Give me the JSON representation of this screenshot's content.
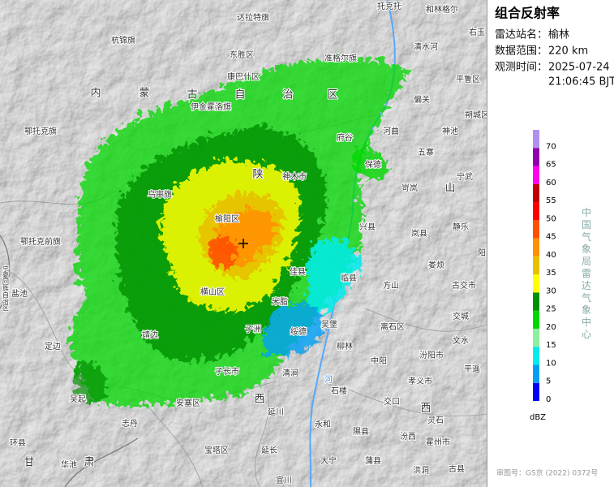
{
  "panel": {
    "title": "组合反射率",
    "station_label": "雷达站名：",
    "station": "榆林",
    "range_label": "数据范围：",
    "range": "220 km",
    "time_label": "观测时间：",
    "date": "2025-07-24",
    "time": "21:06:45 BJT",
    "agency": "中国气象局雷达气象中心",
    "review_number": "审图号：GS京 (2022) 0372号"
  },
  "legend": {
    "unit": "dBZ",
    "ticks": [
      0,
      5,
      10,
      15,
      20,
      25,
      30,
      35,
      40,
      45,
      50,
      55,
      60,
      65,
      70
    ],
    "colors": [
      "#0000f6",
      "#01a0f6",
      "#00ecec",
      "#8cf0a0",
      "#00d800",
      "#009000",
      "#ffff00",
      "#e7c000",
      "#ff9000",
      "#ff5000",
      "#ff0000",
      "#c00000",
      "#ff00f0",
      "#9000b0",
      "#b090f0"
    ]
  },
  "places": [
    "托克托",
    "和林格尔",
    "达拉特旗",
    "杭锦旗",
    "东胜区",
    "准格尔旗",
    "清水河",
    "右玉",
    "康巴什区",
    "平鲁区",
    "内",
    "蒙",
    "古",
    "自",
    "治",
    "区",
    "偏关",
    "伊金霍洛旗",
    "朔城区",
    "鄂托克旗",
    "河曲",
    "神池",
    "府谷",
    "五寨",
    "保德",
    "宁武",
    "陕",
    "神木市",
    "岢岚",
    "山",
    "乌审旗",
    "静乐",
    "鄂托克前旗",
    "榆阳区",
    "兴县",
    "岚县",
    "阳",
    "娄烦",
    "佳县",
    "临县",
    "方山",
    "古交市",
    "宁夏回族自治区",
    "盐池",
    "横山区",
    "米脂",
    "交城",
    "离石区",
    "子洲",
    "绥德",
    "吴堡",
    "文水",
    "定边",
    "靖边",
    "柳林",
    "中阳",
    "汾阳市",
    "清涧",
    "平遥",
    "孝义市",
    "子长市",
    "吴起",
    "志丹",
    "安塞区",
    "西",
    "石楼",
    "交口",
    "西",
    "延川",
    "灵石",
    "永和",
    "隰县",
    "汾西",
    "霍州市",
    "环县",
    "宝塔区",
    "延长",
    "大宁",
    "蒲县",
    "甘",
    "肃",
    "华池",
    "洪洞",
    "古县",
    "宜川",
    "河"
  ]
}
